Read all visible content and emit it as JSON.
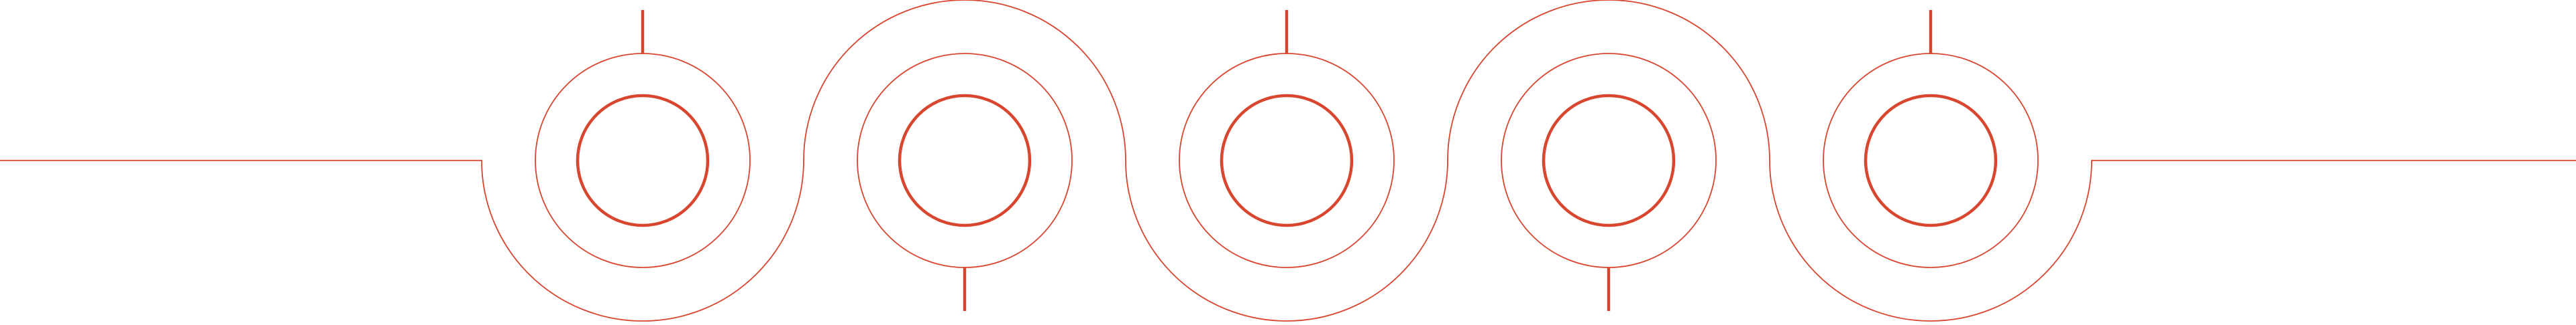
{
  "stroke_color": "#d9462f",
  "background_color": "#ffffff",
  "ornament": {
    "node_count": 5
  }
}
